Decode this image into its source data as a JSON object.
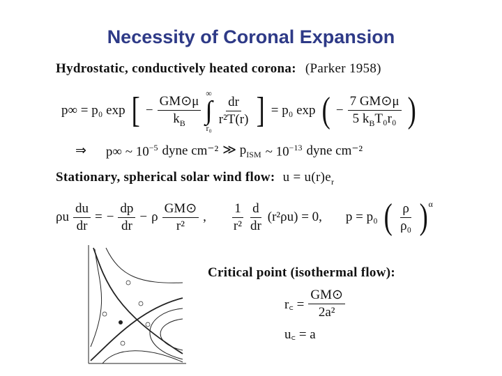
{
  "title": "Necessity of Coronal Expansion",
  "section1": {
    "heading": "Hydrostatic, conductively heated corona:",
    "citation": "(Parker 1958)"
  },
  "eq1": {
    "lhs": "p∞ = p₀ exp",
    "minus1": "−",
    "frac1_num": "GM⊙μ",
    "frac1_den_k": "k",
    "frac1_den_sub": "B",
    "int_upper": "∞",
    "int_lower": "r₀",
    "frac2_num": "dr",
    "frac2_den": "r²T(r)",
    "mid": "= p₀ exp",
    "minus2": "−",
    "frac3_num": "7 GM⊙μ",
    "frac3_den_pre": "5 k",
    "frac3_den_sub": "B",
    "frac3_den_post": "T₀r₀"
  },
  "eq2": {
    "implies": "⇒",
    "lhs": "p∞ ~ 10",
    "exp1": "−5",
    "unit1": "dyne cm⁻²",
    "gg": "≫ p",
    "sub": "ISM",
    "approx": "~ 10",
    "exp2": "−13",
    "unit2": "dyne cm⁻²"
  },
  "section2": {
    "heading": "Stationary, spherical solar wind flow:",
    "formula": "u = u(r)e",
    "sub": "r"
  },
  "eq3": {
    "f1_num": "du",
    "f1_den": "dr",
    "pre": "ρu",
    "eq": "=",
    "minus": "−",
    "f2_num": "dp",
    "f2_den": "dr",
    "minus2": "−",
    "rho": "ρ",
    "f3_num": "GM⊙",
    "f3_den": "r²",
    "comma": ",",
    "f4_num": "1",
    "f4_den": "r²",
    "f5_num": "d",
    "f5_den": "dr",
    "tail": "(r²ρu) = 0,",
    "p_eq": "p = p₀",
    "f6_num": "ρ",
    "f6_den": "ρ₀",
    "alpha": "α"
  },
  "section3": {
    "heading": "Critical point (isothermal flow):"
  },
  "eq4": {
    "rc": "r꜀ =",
    "num": "GM⊙",
    "den": "2a²",
    "uc": "u꜀ = a"
  }
}
